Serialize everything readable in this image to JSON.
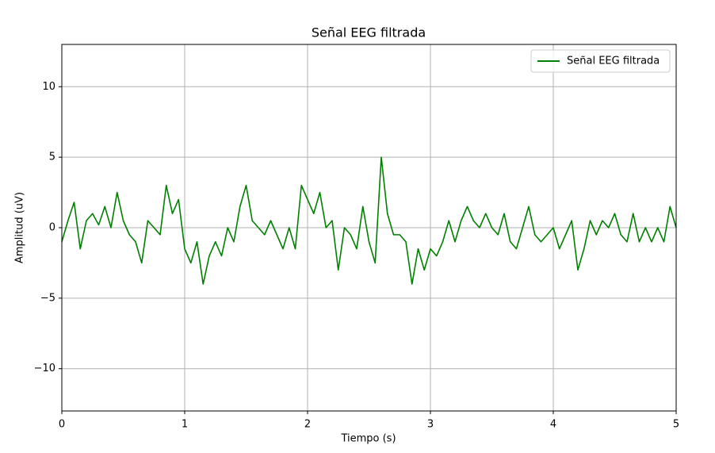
{
  "chart_data": {
    "type": "line",
    "title": "Señal EEG filtrada",
    "xlabel": "Tiempo (s)",
    "ylabel": "Amplitud (uV)",
    "xlim": [
      0,
      5
    ],
    "ylim": [
      -13,
      13
    ],
    "xticks": [
      0,
      1,
      2,
      3,
      4,
      5
    ],
    "yticks": [
      {
        "value": -10,
        "label": "−10"
      },
      {
        "value": -5,
        "label": "−5"
      },
      0,
      5,
      10
    ],
    "grid": true,
    "legend": "upper right",
    "x": [
      0,
      0.05,
      0.1,
      0.15,
      0.2,
      0.25,
      0.3,
      0.35,
      0.4,
      0.45,
      0.5,
      0.55,
      0.6,
      0.65,
      0.7,
      0.75,
      0.8,
      0.85,
      0.9,
      0.95,
      1,
      1.05,
      1.1,
      1.15,
      1.2,
      1.25,
      1.3,
      1.35,
      1.4,
      1.45,
      1.5,
      1.55,
      1.6,
      1.65,
      1.7,
      1.75,
      1.8,
      1.85,
      1.9,
      1.95,
      2,
      2.05,
      2.1,
      2.15,
      2.2,
      2.25,
      2.3,
      2.35,
      2.4,
      2.45,
      2.5,
      2.55,
      2.6,
      2.65,
      2.7,
      2.75,
      2.8,
      2.85,
      2.9,
      2.95,
      3,
      3.05,
      3.1,
      3.15,
      3.2,
      3.25,
      3.3,
      3.35,
      3.4,
      3.45,
      3.5,
      3.55,
      3.6,
      3.65,
      3.7,
      3.75,
      3.8,
      3.85,
      3.9,
      3.95,
      4,
      4.05,
      4.1,
      4.15,
      4.2,
      4.25,
      4.3,
      4.35,
      4.4,
      4.45,
      4.5,
      4.55,
      4.6,
      4.65,
      4.7,
      4.75,
      4.8,
      4.85,
      4.9,
      4.95,
      5
    ],
    "series": [
      {
        "name": "Señal EEG filtrada",
        "color": "#008000",
        "values": [
          -1,
          0.5,
          1.8,
          -1.5,
          0.5,
          1,
          0.2,
          1.5,
          0,
          2.5,
          0.5,
          -0.5,
          -1,
          -2.5,
          0.5,
          0,
          -0.5,
          3,
          1,
          2,
          -1.5,
          -2.5,
          -1,
          -4,
          -2,
          -1,
          -2,
          0,
          -1,
          1.5,
          3,
          0.5,
          0,
          -0.5,
          0.5,
          -0.5,
          -1.5,
          0,
          -1.5,
          3,
          2,
          1,
          2.5,
          0,
          0.5,
          -3,
          0,
          -0.5,
          -1.5,
          1.5,
          -1,
          -2.5,
          5,
          1,
          -0.5,
          -0.5,
          -1,
          -4,
          -1.5,
          -3,
          -1.5,
          -2,
          -1,
          0.5,
          -1,
          0.5,
          1.5,
          0.5,
          0,
          1,
          0,
          -0.5,
          1,
          -1,
          -1.5,
          0,
          1.5,
          -0.5,
          -1,
          -0.5,
          0,
          -1.5,
          -0.5,
          0.5,
          -3,
          -1.5,
          0.5,
          -0.5,
          0.5,
          0,
          1,
          -0.5,
          -1,
          1,
          -1,
          0,
          -1,
          0,
          -1,
          1.5,
          0
        ]
      }
    ]
  }
}
